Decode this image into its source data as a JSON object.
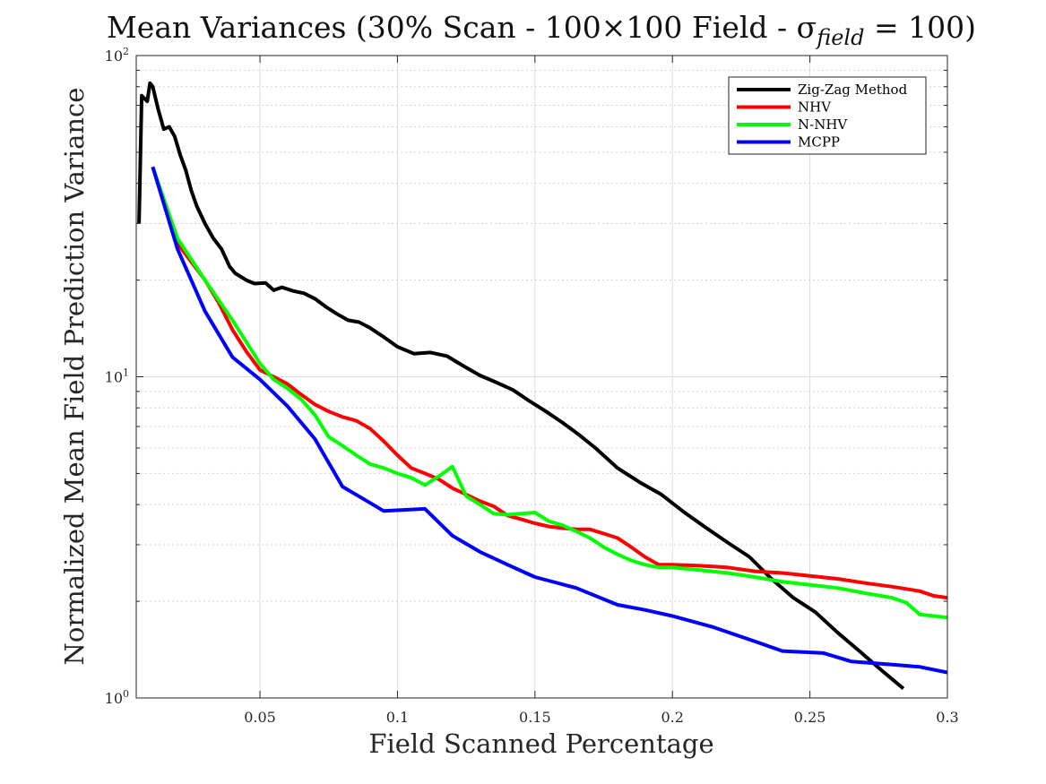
{
  "chart_data": {
    "type": "line",
    "title": "Mean Variances (30% Scan - 100×100 Field - σ",
    "title_sub": "field",
    "title_end": " = 100)",
    "xlabel": "Field Scanned Percentage",
    "ylabel": "Normalized Mean Field Prediction Variance",
    "xlim": [
      0.005,
      0.3
    ],
    "ylim": [
      1,
      100
    ],
    "y_scale": "log",
    "grid": true,
    "minor_grid": true,
    "legend_position": "top-right",
    "x_ticks": [
      "0.05",
      "0.1",
      "0.15",
      "0.2",
      "0.25",
      "0.3"
    ],
    "y_ticks": [
      {
        "base": "10",
        "exp": "0"
      },
      {
        "base": "10",
        "exp": "1"
      },
      {
        "base": "10",
        "exp": "2"
      }
    ],
    "series": [
      {
        "name": "Zig-Zag Method",
        "color": "#000000",
        "x": [
          0.006,
          0.007,
          0.009,
          0.01,
          0.011,
          0.013,
          0.015,
          0.017,
          0.019,
          0.021,
          0.023,
          0.025,
          0.027,
          0.03,
          0.033,
          0.036,
          0.039,
          0.041,
          0.045,
          0.048,
          0.052,
          0.055,
          0.058,
          0.062,
          0.066,
          0.07,
          0.074,
          0.078,
          0.082,
          0.086,
          0.09,
          0.095,
          0.1,
          0.106,
          0.112,
          0.118,
          0.124,
          0.13,
          0.136,
          0.142,
          0.148,
          0.154,
          0.16,
          0.166,
          0.172,
          0.18,
          0.188,
          0.196,
          0.204,
          0.212,
          0.22,
          0.228,
          0.236,
          0.244,
          0.252,
          0.26,
          0.268,
          0.276,
          0.284
        ],
        "values": [
          30,
          75,
          72,
          82,
          80,
          68,
          59,
          60,
          56,
          49,
          44,
          38,
          34,
          30,
          27,
          25,
          22,
          21,
          20,
          19.5,
          19.6,
          18.6,
          19,
          18.5,
          18.2,
          17.5,
          16.5,
          15.7,
          15,
          14.8,
          14.2,
          13.3,
          12.4,
          11.8,
          11.9,
          11.6,
          10.8,
          10.1,
          9.6,
          9.1,
          8.4,
          7.8,
          7.2,
          6.6,
          6.0,
          5.2,
          4.7,
          4.3,
          3.8,
          3.4,
          3.05,
          2.75,
          2.35,
          2.05,
          1.85,
          1.6,
          1.4,
          1.22,
          1.07
        ]
      },
      {
        "name": "NHV",
        "color": "#ff0000",
        "x": [
          0.011,
          0.02,
          0.03,
          0.035,
          0.04,
          0.045,
          0.05,
          0.055,
          0.06,
          0.065,
          0.07,
          0.075,
          0.08,
          0.085,
          0.09,
          0.095,
          0.1,
          0.105,
          0.11,
          0.115,
          0.12,
          0.125,
          0.13,
          0.135,
          0.14,
          0.145,
          0.15,
          0.155,
          0.16,
          0.165,
          0.17,
          0.175,
          0.18,
          0.185,
          0.19,
          0.195,
          0.2,
          0.21,
          0.22,
          0.23,
          0.24,
          0.25,
          0.26,
          0.27,
          0.28,
          0.29,
          0.295,
          0.3
        ],
        "values": [
          45,
          26,
          20,
          17,
          14,
          12,
          10.5,
          10,
          9.5,
          8.8,
          8.2,
          7.8,
          7.5,
          7.3,
          6.9,
          6.3,
          5.7,
          5.2,
          5.0,
          4.8,
          4.5,
          4.3,
          4.1,
          3.95,
          3.7,
          3.6,
          3.5,
          3.42,
          3.38,
          3.35,
          3.35,
          3.25,
          3.15,
          2.95,
          2.75,
          2.6,
          2.6,
          2.58,
          2.55,
          2.48,
          2.45,
          2.4,
          2.35,
          2.28,
          2.22,
          2.15,
          2.08,
          2.05
        ]
      },
      {
        "name": "N-NHV",
        "color": "#00ff00",
        "x": [
          0.011,
          0.02,
          0.03,
          0.04,
          0.05,
          0.055,
          0.06,
          0.065,
          0.07,
          0.075,
          0.08,
          0.085,
          0.09,
          0.095,
          0.1,
          0.105,
          0.11,
          0.115,
          0.12,
          0.125,
          0.13,
          0.135,
          0.14,
          0.145,
          0.15,
          0.155,
          0.16,
          0.165,
          0.17,
          0.175,
          0.18,
          0.185,
          0.19,
          0.195,
          0.2,
          0.21,
          0.22,
          0.23,
          0.24,
          0.25,
          0.26,
          0.27,
          0.28,
          0.285,
          0.29,
          0.3
        ],
        "values": [
          45,
          27,
          20,
          15,
          11,
          9.8,
          9.2,
          8.5,
          7.6,
          6.5,
          6.1,
          5.7,
          5.35,
          5.2,
          5.0,
          4.85,
          4.6,
          4.9,
          5.25,
          4.25,
          4.0,
          3.75,
          3.72,
          3.75,
          3.78,
          3.55,
          3.45,
          3.3,
          3.15,
          2.95,
          2.8,
          2.68,
          2.6,
          2.55,
          2.55,
          2.5,
          2.45,
          2.38,
          2.3,
          2.25,
          2.2,
          2.12,
          2.05,
          1.98,
          1.82,
          1.78
        ]
      },
      {
        "name": "MCPP",
        "color": "#0000ff",
        "x": [
          0.011,
          0.02,
          0.03,
          0.04,
          0.05,
          0.06,
          0.07,
          0.08,
          0.09,
          0.095,
          0.11,
          0.12,
          0.13,
          0.14,
          0.15,
          0.165,
          0.18,
          0.19,
          0.2,
          0.215,
          0.23,
          0.24,
          0.255,
          0.265,
          0.28,
          0.29,
          0.3
        ],
        "values": [
          45,
          25,
          16,
          11.5,
          9.8,
          8.1,
          6.4,
          4.55,
          4.05,
          3.82,
          3.88,
          3.2,
          2.85,
          2.6,
          2.38,
          2.2,
          1.95,
          1.88,
          1.8,
          1.66,
          1.5,
          1.4,
          1.38,
          1.3,
          1.27,
          1.25,
          1.2
        ]
      }
    ]
  }
}
